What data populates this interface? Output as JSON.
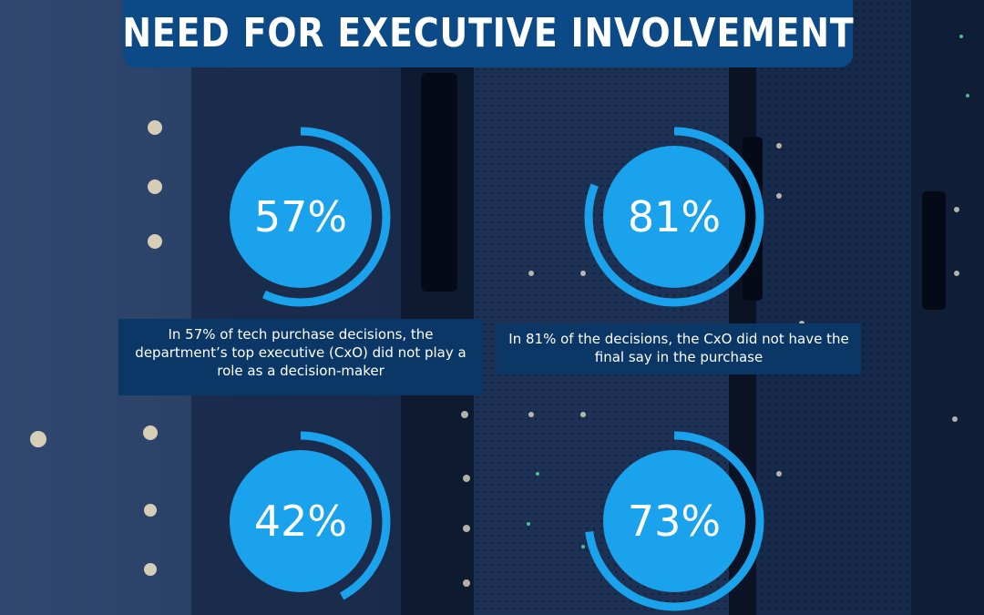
{
  "title": "NEED FOR EXECUTIVE INVOLVEMENT",
  "colors": {
    "banner": "#0b4a86",
    "circle": "#1aa3ec",
    "ring": "#1aa3ec",
    "caption_bg": "#0a3766"
  },
  "stats": [
    {
      "value": "57%",
      "fraction": 0.57,
      "caption": "In 57% of tech purchase decisions, the department’s top executive (CxO) did not play a role as a decision-maker"
    },
    {
      "value": "81%",
      "fraction": 0.81,
      "caption": "In 81% of the decisions, the CxO did not have the final say in the purchase"
    },
    {
      "value": "42%",
      "fraction": 0.42,
      "caption": ""
    },
    {
      "value": "73%",
      "fraction": 0.73,
      "caption": ""
    }
  ]
}
